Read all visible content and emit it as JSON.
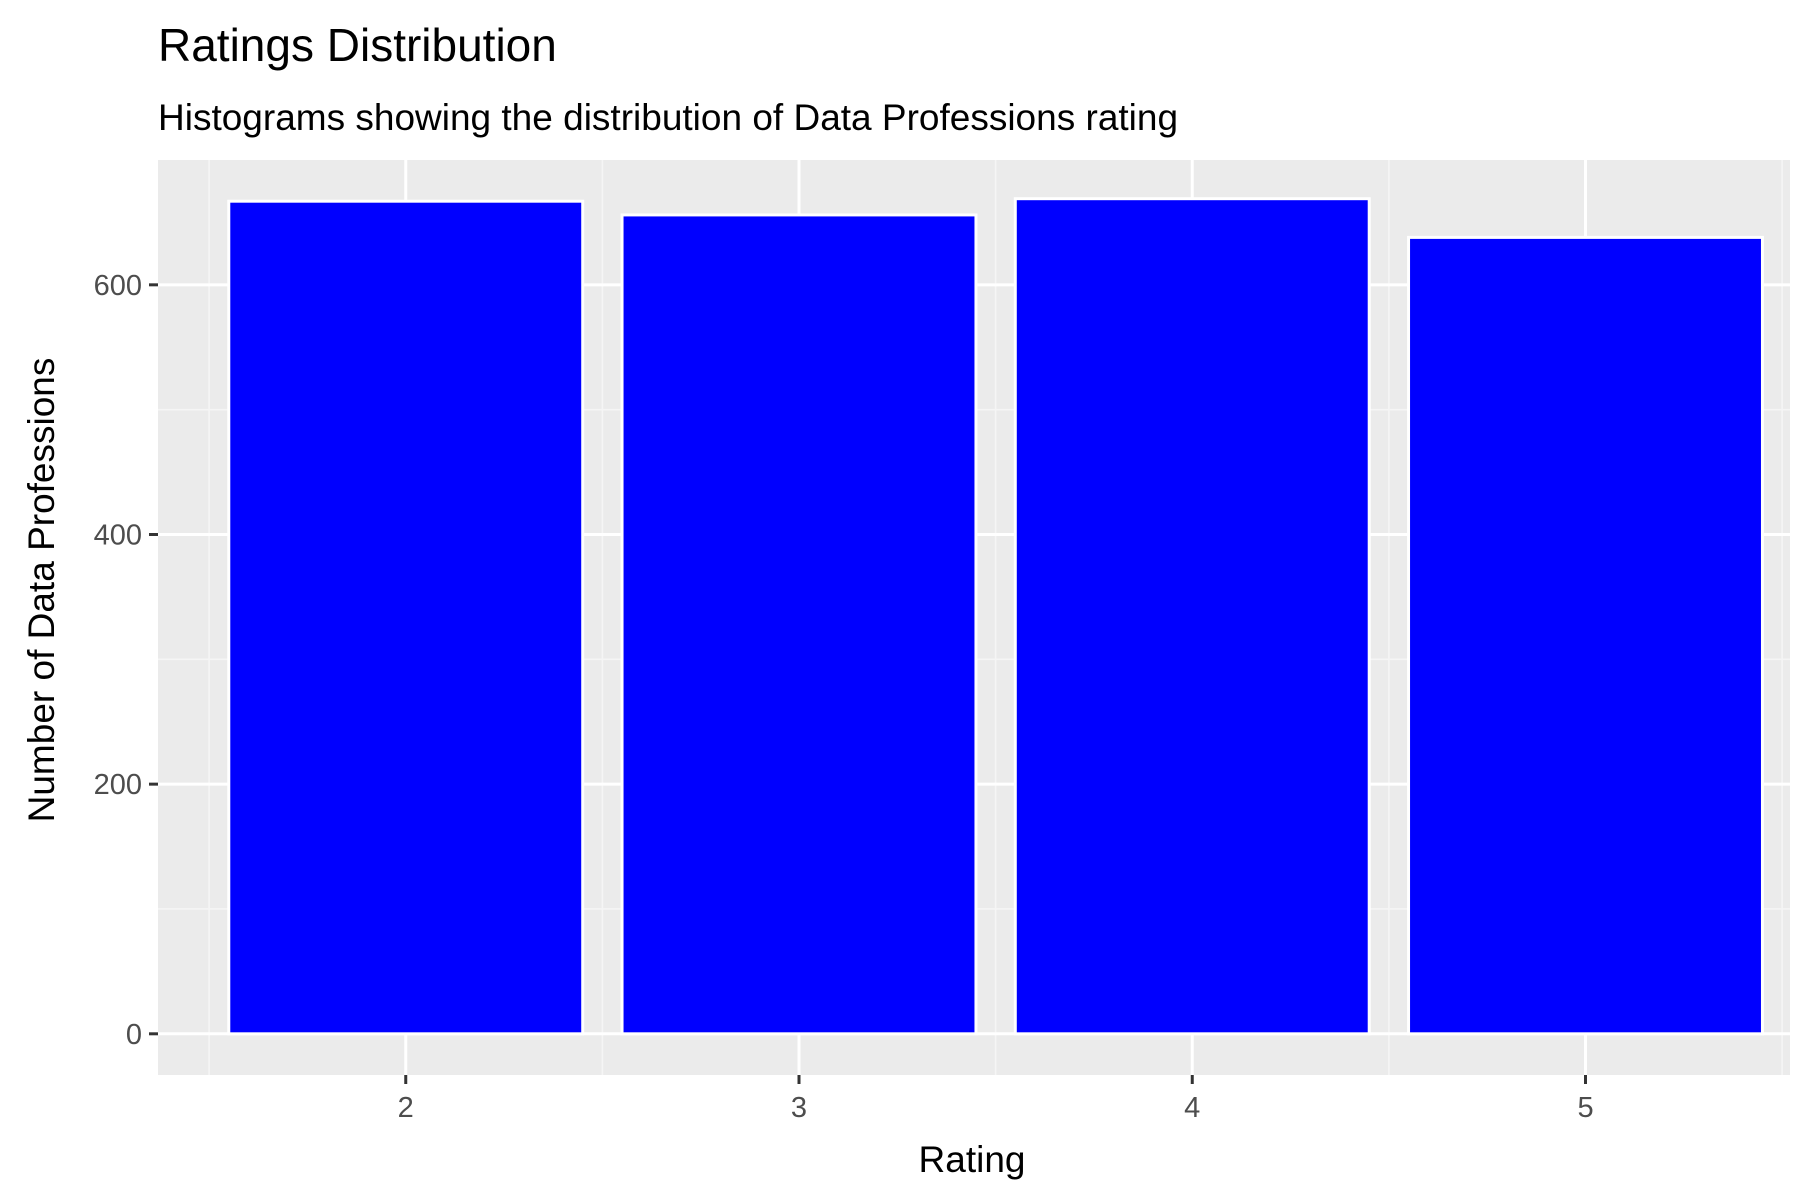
{
  "chart_data": {
    "type": "bar",
    "title": "Ratings Distribution",
    "subtitle": "Histograms showing the distribution of Data Professions rating",
    "xlabel": "Rating",
    "ylabel": "Number of Data Professions",
    "categories": [
      "2",
      "3",
      "4",
      "5"
    ],
    "values": [
      667,
      656,
      669,
      638
    ],
    "ylim": [
      -33,
      700
    ],
    "yticks": [
      0,
      200,
      400,
      600
    ],
    "grid": true,
    "legend": "none",
    "colors": {
      "bar_fill": "#0000ff",
      "bar_outline": "#ffffff",
      "panel_background": "#ebebeb",
      "grid_major": "#ffffff",
      "grid_minor": "#f5f5f5"
    }
  }
}
